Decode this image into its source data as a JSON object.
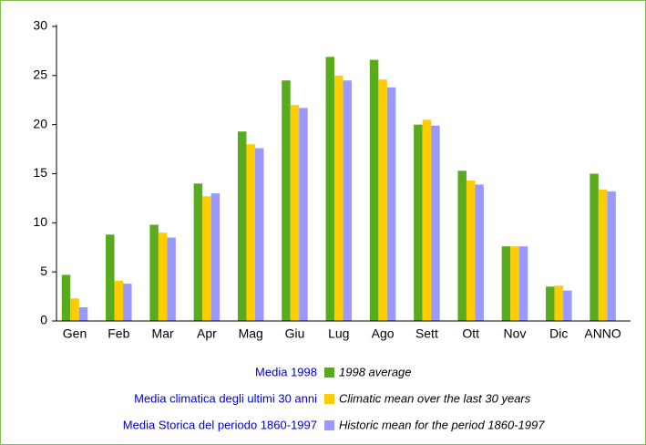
{
  "chart_data": {
    "type": "bar",
    "categories": [
      "Gen",
      "Feb",
      "Mar",
      "Apr",
      "Mag",
      "Giu",
      "Lug",
      "Ago",
      "Sett",
      "Ott",
      "Nov",
      "Dic",
      "ANNO"
    ],
    "series": [
      {
        "name": "1998 average",
        "legend_note": "Media 1998",
        "color": "#5aaa1e",
        "values": [
          4.7,
          8.8,
          9.8,
          14.0,
          19.3,
          24.5,
          26.9,
          26.6,
          20.0,
          15.3,
          7.6,
          3.5,
          15.0
        ]
      },
      {
        "name": "Climatic mean over the last 30 years",
        "legend_note": "Media climatica degli ultimi 30 anni",
        "color": "#ffcc00",
        "values": [
          2.3,
          4.1,
          9.0,
          12.7,
          18.0,
          22.0,
          25.0,
          24.6,
          20.5,
          14.3,
          7.6,
          3.6,
          13.4
        ]
      },
      {
        "name": "Historic mean for the period 1860-1997",
        "legend_note": "Media Storica del periodo 1860-1997",
        "color": "#9999ff",
        "values": [
          1.4,
          3.8,
          8.5,
          13.0,
          17.6,
          21.7,
          24.5,
          23.8,
          19.9,
          13.9,
          7.6,
          3.1,
          13.2
        ]
      }
    ],
    "ylim": [
      0,
      30
    ],
    "yticks": [
      0,
      5,
      10,
      15,
      20,
      25,
      30
    ],
    "grid": false
  }
}
